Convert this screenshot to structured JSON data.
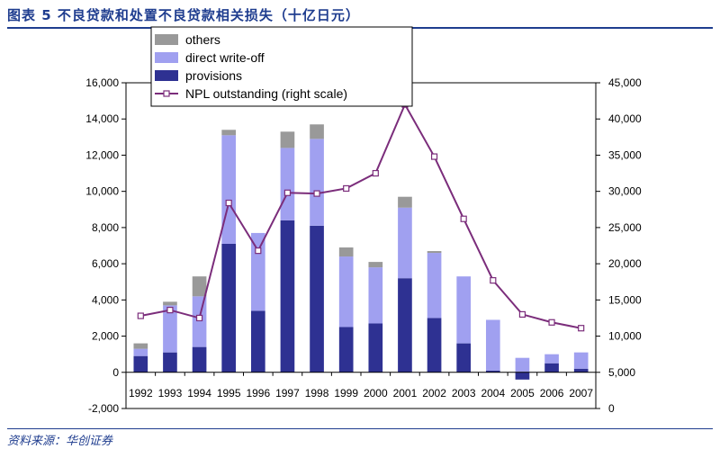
{
  "title": "图表 5   不良贷款和处置不良贷款相关损失（十亿日元）",
  "source": "资料来源：华创证券",
  "colors": {
    "others": "#999999",
    "direct": "#a0a0f0",
    "provisions": "#2e3192",
    "npl_line": "#7b2d7b",
    "title": "#1f3d8f"
  },
  "chart_data": {
    "type": "bar",
    "stacked": true,
    "categories": [
      "1992",
      "1993",
      "1994",
      "1995",
      "1996",
      "1997",
      "1998",
      "1999",
      "2000",
      "2001",
      "2002",
      "2003",
      "2004",
      "2005",
      "2006",
      "2007"
    ],
    "series": [
      {
        "name": "provisions",
        "values": [
          900,
          1100,
          1400,
          7100,
          3400,
          8400,
          8100,
          2500,
          2700,
          5200,
          3000,
          1600,
          100,
          -400,
          500,
          200
        ]
      },
      {
        "name": "direct write-off",
        "values": [
          400,
          2600,
          2800,
          6000,
          4300,
          4000,
          4800,
          3900,
          3100,
          3900,
          3600,
          3700,
          2800,
          800,
          500,
          900
        ]
      },
      {
        "name": "others",
        "values": [
          300,
          200,
          1100,
          300,
          0,
          900,
          800,
          500,
          300,
          600,
          100,
          0,
          0,
          0,
          0,
          0
        ]
      }
    ],
    "line_series": {
      "name": "NPL outstanding (right scale)",
      "axis": "right",
      "values": [
        12800,
        13600,
        12500,
        28400,
        21800,
        29800,
        29700,
        30400,
        32500,
        42000,
        34800,
        26200,
        17700,
        13000,
        11900,
        11100
      ]
    },
    "left_axis": {
      "ylim": [
        -2000,
        16000
      ],
      "ticks": [
        "16,000",
        "14,000",
        "12,000",
        "10,000",
        "8,000",
        "6,000",
        "4,000",
        "2,000",
        "0",
        "-2,000"
      ]
    },
    "right_axis": {
      "ylim": [
        0,
        45000
      ],
      "ticks": [
        "45,000",
        "40,000",
        "35,000",
        "30,000",
        "25,000",
        "20,000",
        "15,000",
        "10,000",
        "5,000",
        "0"
      ]
    },
    "legend": {
      "placement": "top-left",
      "entries": [
        "others",
        "direct write-off",
        "provisions",
        "NPL outstanding (right scale)"
      ]
    },
    "grid": false
  }
}
